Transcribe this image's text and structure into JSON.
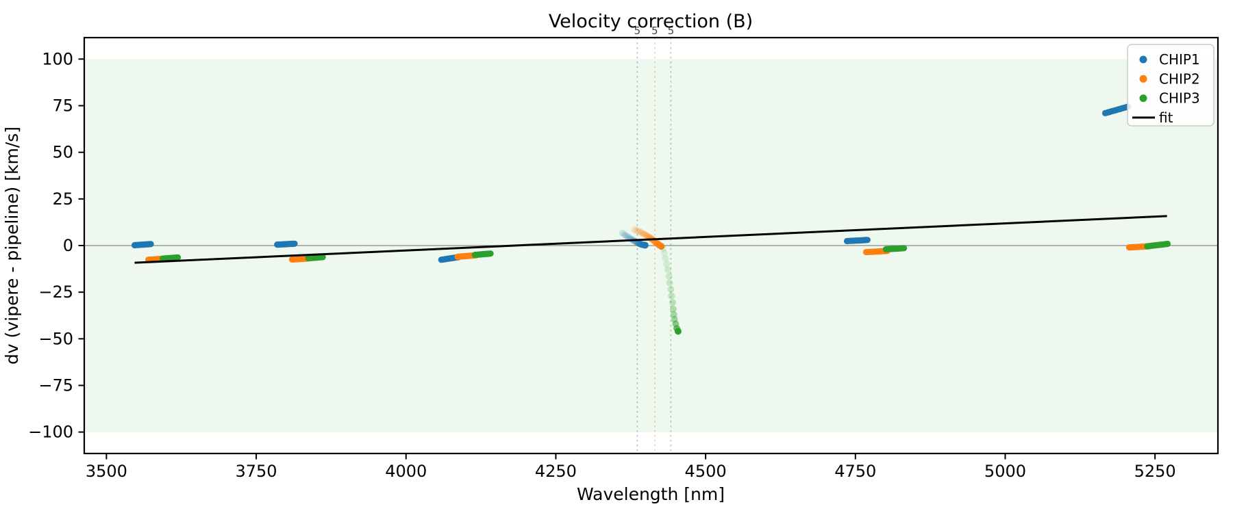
{
  "chart_data": {
    "type": "scatter",
    "title": "Velocity correction (B)",
    "xlabel": "Wavelength [nm]",
    "ylabel": "dv (vipere - pipeline) [km/s]",
    "xlim": [
      3463,
      5355
    ],
    "ylim": [
      -111.5,
      111.5
    ],
    "grid": false,
    "axes_background": "#ffffff",
    "xticks": {
      "values": [
        3500,
        3750,
        4000,
        4250,
        4500,
        4750,
        5000,
        5250
      ],
      "labels": [
        "3500",
        "3750",
        "4000",
        "4250",
        "4500",
        "4750",
        "5000",
        "5250"
      ]
    },
    "yticks": {
      "values": [
        100,
        75,
        50,
        25,
        0,
        -25,
        -50,
        -75,
        -100
      ],
      "labels": [
        "100",
        "75",
        "50",
        "25",
        "0",
        "−25",
        "−50",
        "−75",
        "−100"
      ]
    },
    "band": {
      "ymin": -100,
      "ymax": 100,
      "color": "rgba(44,160,44,0.08)"
    },
    "zero_line": {
      "y": 0,
      "color": "#888888"
    },
    "order_markers": [
      {
        "x": 4386,
        "label": "5",
        "color": "#1f77b4"
      },
      {
        "x": 4415,
        "label": "5",
        "color": "#ff7f0e"
      },
      {
        "x": 4442,
        "label": "5",
        "color": "#2ca02c"
      }
    ],
    "series": [
      {
        "name": "CHIP1",
        "color": "#1f77b4",
        "segments": [
          {
            "x": [
              3547,
              3574
            ],
            "dv": [
              0.2,
              0.8
            ]
          },
          {
            "x": [
              3785,
              3814
            ],
            "dv": [
              0.5,
              1.0
            ]
          },
          {
            "x": [
              4059,
              4088
            ],
            "dv": [
              -7.6,
              -6.2
            ]
          },
          {
            "x": [
              4736,
              4770
            ],
            "dv": [
              2.4,
              3.0
            ]
          },
          {
            "x": [
              5167,
              5205
            ],
            "dv": [
              71.0,
              74.5
            ]
          }
        ]
      },
      {
        "name": "CHIP2",
        "color": "#ff7f0e",
        "segments": [
          {
            "x": [
              3570,
              3598
            ],
            "dv": [
              -7.6,
              -7.0
            ]
          },
          {
            "x": [
              3810,
              3838
            ],
            "dv": [
              -7.5,
              -6.9
            ]
          },
          {
            "x": [
              4086,
              4117
            ],
            "dv": [
              -6.0,
              -5.2
            ]
          },
          {
            "x": [
              4768,
              4803
            ],
            "dv": [
              -3.5,
              -2.9
            ]
          },
          {
            "x": [
              5207,
              5239
            ],
            "dv": [
              -1.0,
              -0.4
            ]
          }
        ]
      },
      {
        "name": "CHIP3",
        "color": "#2ca02c",
        "segments": [
          {
            "x": [
              3594,
              3619
            ],
            "dv": [
              -7.0,
              -6.4
            ]
          },
          {
            "x": [
              3837,
              3861
            ],
            "dv": [
              -6.8,
              -6.2
            ]
          },
          {
            "x": [
              4115,
              4141
            ],
            "dv": [
              -5.0,
              -4.3
            ]
          },
          {
            "x": [
              4801,
              4831
            ],
            "dv": [
              -2.0,
              -1.4
            ]
          },
          {
            "x": [
              5237,
              5271
            ],
            "dv": [
              -0.4,
              0.9
            ]
          }
        ]
      }
    ],
    "trails": [
      {
        "series": "CHIP1",
        "color": "#1f77b4",
        "points": [
          [
            4361,
            6.8,
            0.15
          ],
          [
            4364,
            6.0,
            0.16
          ],
          [
            4367,
            5.3,
            0.18
          ],
          [
            4370,
            4.7,
            0.2
          ],
          [
            4373,
            4.0,
            0.23
          ],
          [
            4376,
            3.4,
            0.26
          ],
          [
            4379,
            2.8,
            0.3
          ],
          [
            4382,
            2.3,
            0.35
          ],
          [
            4385,
            1.8,
            0.42
          ],
          [
            4388,
            1.3,
            0.5
          ],
          [
            4390,
            0.9,
            0.6
          ],
          [
            4393,
            0.6,
            0.72
          ],
          [
            4396,
            0.35,
            0.86
          ],
          [
            4399,
            0.2,
            1.0
          ]
        ]
      },
      {
        "series": "CHIP2",
        "color": "#ff7f0e",
        "points": [
          [
            4381,
            8.5,
            0.15
          ],
          [
            4384,
            8.2,
            0.16
          ],
          [
            4387,
            7.8,
            0.18
          ],
          [
            4390,
            7.4,
            0.2
          ],
          [
            4393,
            6.9,
            0.22
          ],
          [
            4396,
            6.4,
            0.25
          ],
          [
            4399,
            5.8,
            0.28
          ],
          [
            4402,
            5.2,
            0.32
          ],
          [
            4405,
            4.6,
            0.38
          ],
          [
            4408,
            4.0,
            0.45
          ],
          [
            4411,
            3.3,
            0.53
          ],
          [
            4414,
            2.5,
            0.62
          ],
          [
            4417,
            1.7,
            0.72
          ],
          [
            4420,
            0.9,
            0.83
          ],
          [
            4423,
            0.2,
            0.93
          ],
          [
            4426,
            -0.4,
            1.0
          ]
        ]
      },
      {
        "series": "CHIP3",
        "color": "#2ca02c",
        "points": [
          [
            4429,
            -1.5,
            0.12
          ],
          [
            4431,
            -4.0,
            0.13
          ],
          [
            4433,
            -7.0,
            0.14
          ],
          [
            4435,
            -10.0,
            0.15
          ],
          [
            4437,
            -13.0,
            0.16
          ],
          [
            4439,
            -16.5,
            0.18
          ],
          [
            4440,
            -20.0,
            0.2
          ],
          [
            4442,
            -23.5,
            0.22
          ],
          [
            4443,
            -27.0,
            0.25
          ],
          [
            4445,
            -30.5,
            0.28
          ],
          [
            4446,
            -34.0,
            0.32
          ],
          [
            4447,
            -37.0,
            0.37
          ],
          [
            4448,
            -39.5,
            0.43
          ],
          [
            4450,
            -42.0,
            0.52
          ],
          [
            4452,
            -44.5,
            0.7
          ],
          [
            4454,
            -46.0,
            1.0
          ]
        ]
      }
    ],
    "fit": {
      "label": "fit",
      "color": "#000000",
      "x": [
        3547,
        5270
      ],
      "dv": [
        -9.2,
        15.8
      ]
    },
    "legend": {
      "position": "upper right",
      "entries": [
        {
          "label": "CHIP1",
          "marker": "dot",
          "color": "#1f77b4"
        },
        {
          "label": "CHIP2",
          "marker": "dot",
          "color": "#ff7f0e"
        },
        {
          "label": "CHIP3",
          "marker": "dot",
          "color": "#2ca02c"
        },
        {
          "label": "fit",
          "marker": "line",
          "color": "#000000"
        }
      ]
    }
  }
}
